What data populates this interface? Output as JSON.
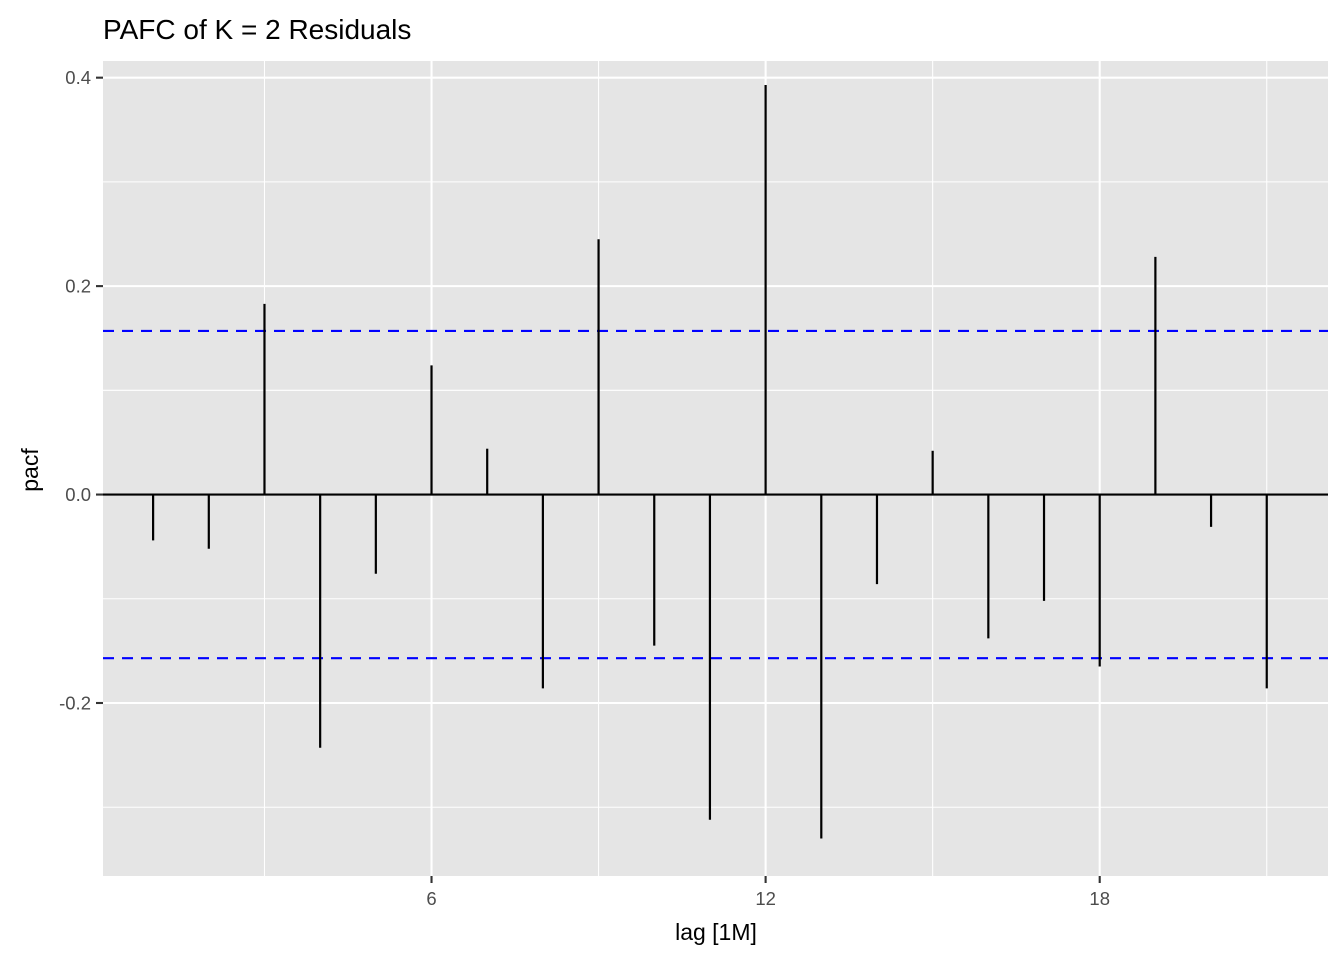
{
  "chart_data": {
    "type": "bar",
    "title": "PAFC of K = 2 Residuals",
    "xlabel": "lag [1M]",
    "ylabel": "pacf",
    "x": [
      1,
      2,
      3,
      4,
      5,
      6,
      7,
      8,
      9,
      10,
      11,
      12,
      13,
      14,
      15,
      16,
      17,
      18,
      19,
      20,
      21
    ],
    "values": [
      -0.044,
      -0.052,
      0.183,
      -0.243,
      -0.076,
      0.124,
      0.044,
      -0.186,
      0.245,
      -0.145,
      -0.312,
      0.393,
      -0.33,
      -0.086,
      0.042,
      -0.138,
      -0.102,
      -0.165,
      0.228,
      -0.031,
      -0.186
    ],
    "ci_upper": 0.157,
    "ci_lower": -0.157,
    "xlim": [
      0.1,
      22.1
    ],
    "ylim": [
      -0.366,
      0.416
    ],
    "x_ticks": [
      6,
      12,
      18
    ],
    "y_ticks": [
      -0.2,
      0.0,
      0.2,
      0.4
    ],
    "x_tick_labels": [
      "6",
      "12",
      "18"
    ],
    "y_tick_labels": [
      "-0.2",
      "0.0",
      "0.2",
      "0.4"
    ],
    "grid": true,
    "colors": {
      "stem": "#000000",
      "ci": "#0000ff",
      "panel": "#e5e5e5",
      "grid": "#ffffff"
    }
  }
}
